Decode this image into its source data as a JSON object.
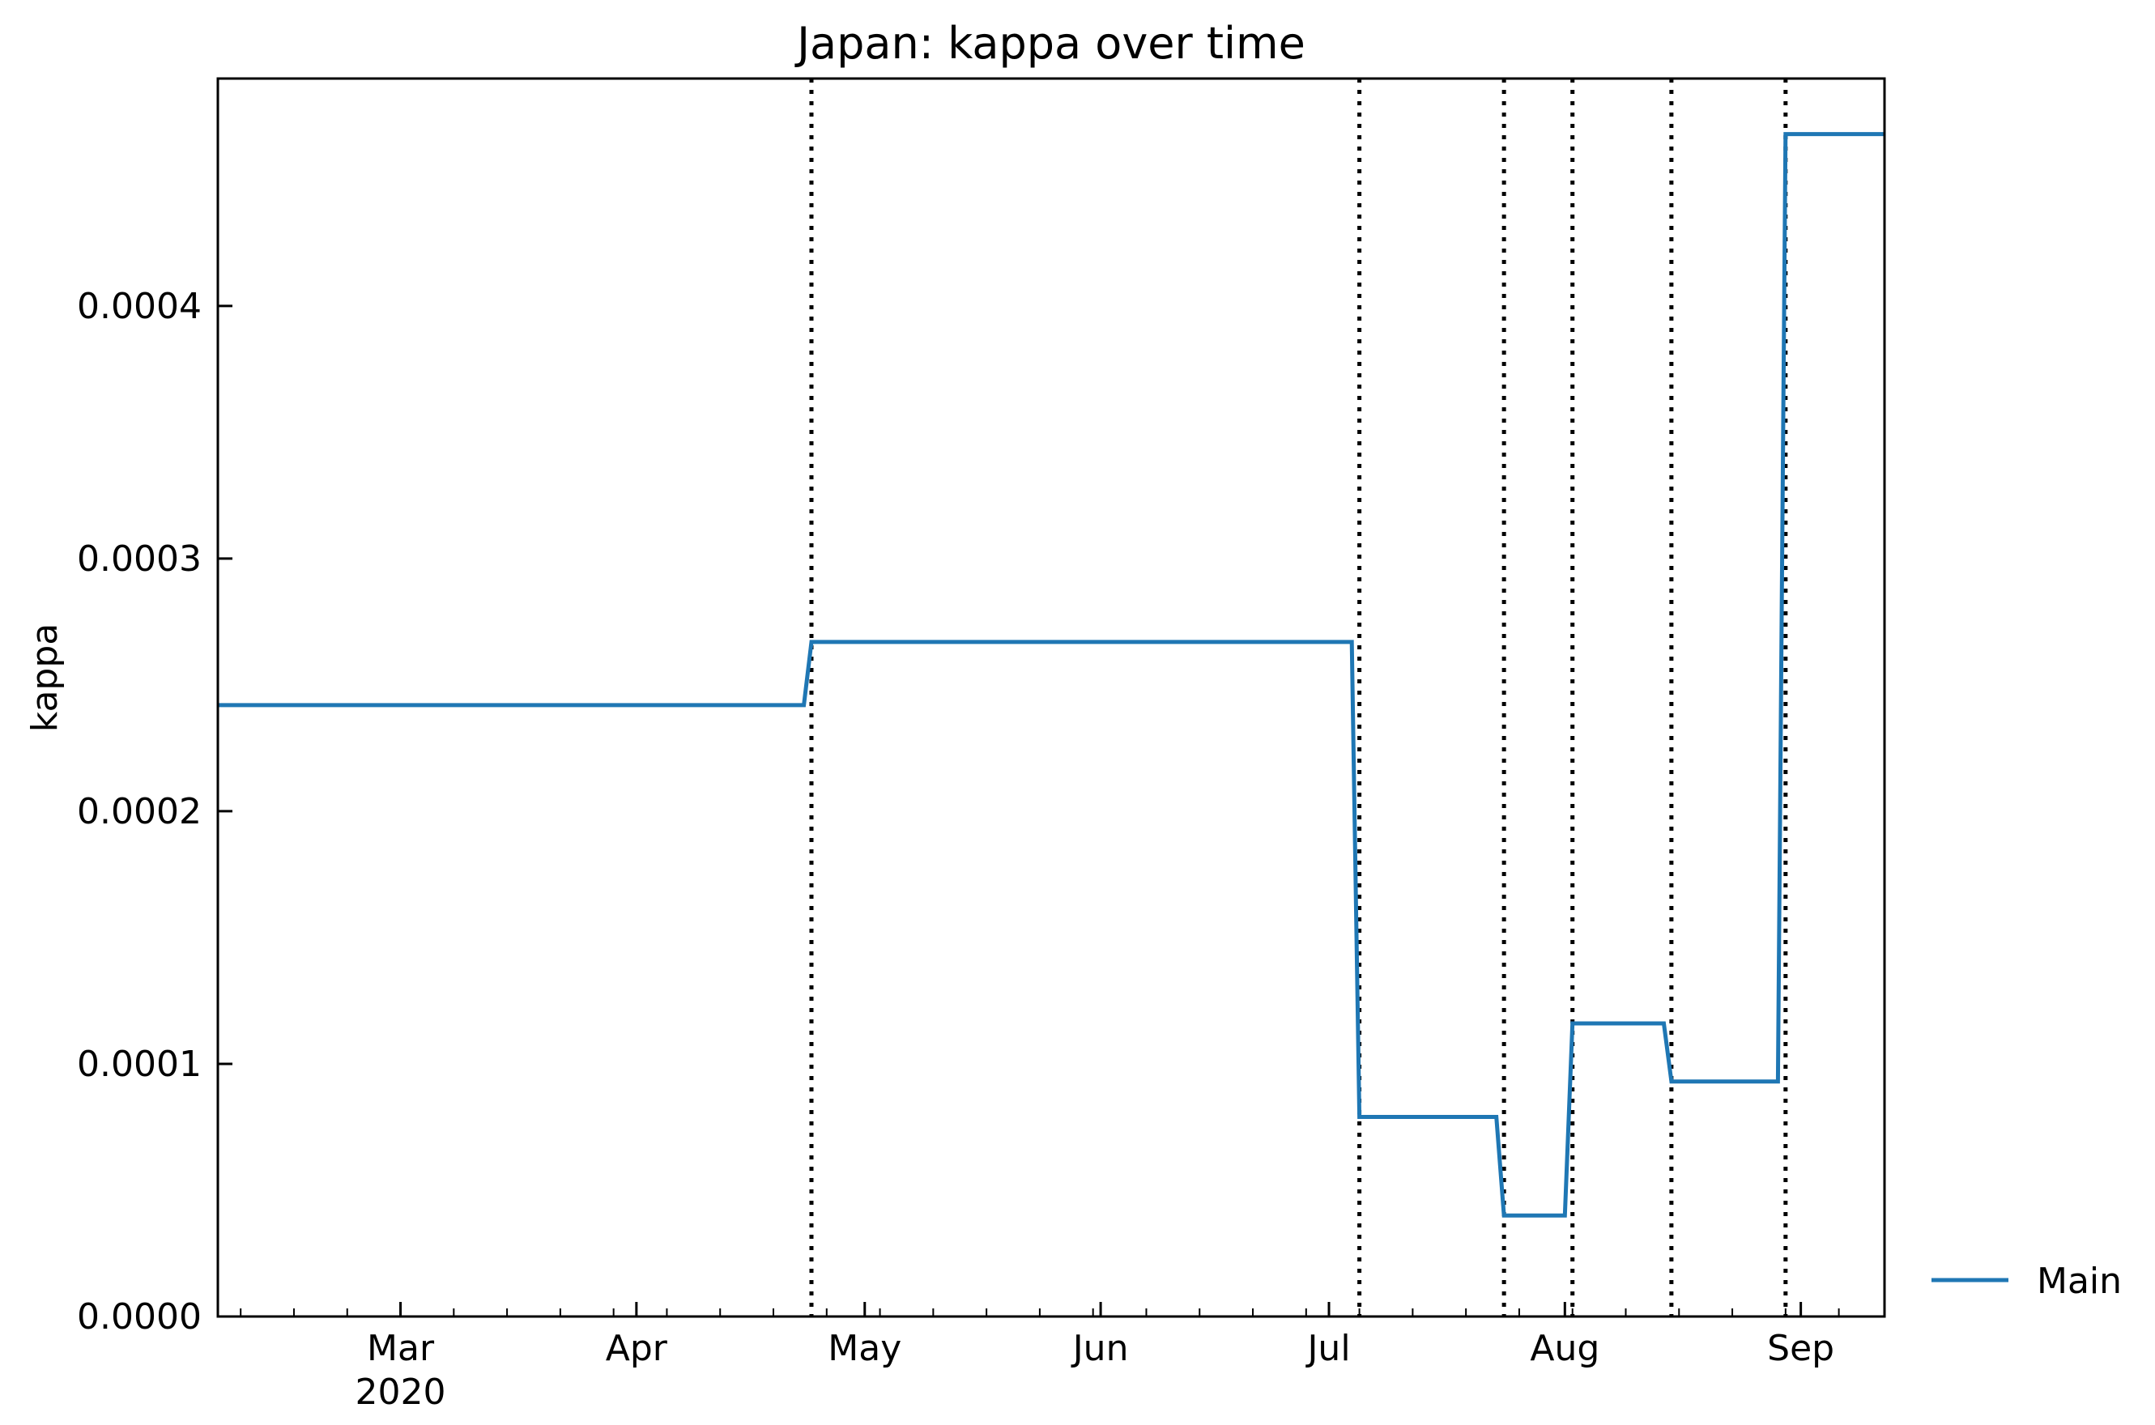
{
  "chart_data": {
    "type": "line",
    "title": "Japan: kappa over time",
    "xlabel": "",
    "ylabel": "kappa",
    "xlim": [
      "2020-02-06",
      "2020-09-12"
    ],
    "ylim": [
      0,
      0.00049
    ],
    "x_ticks": [
      {
        "date": "2020-03-01",
        "label": "Mar",
        "sublabel": "2020"
      },
      {
        "date": "2020-04-01",
        "label": "Apr",
        "sublabel": ""
      },
      {
        "date": "2020-05-01",
        "label": "May",
        "sublabel": ""
      },
      {
        "date": "2020-06-01",
        "label": "Jun",
        "sublabel": ""
      },
      {
        "date": "2020-07-01",
        "label": "Jul",
        "sublabel": ""
      },
      {
        "date": "2020-08-01",
        "label": "Aug",
        "sublabel": ""
      },
      {
        "date": "2020-09-01",
        "label": "Sep",
        "sublabel": ""
      }
    ],
    "y_ticks": [
      {
        "value": 0,
        "label": "0.0000"
      },
      {
        "value": 0.0001,
        "label": "0.0001"
      },
      {
        "value": 0.0002,
        "label": "0.0002"
      },
      {
        "value": 0.0003,
        "label": "0.0003"
      },
      {
        "value": 0.0004,
        "label": "0.0004"
      }
    ],
    "minor_x_ticks": [
      "2020-02-09",
      "2020-02-16",
      "2020-02-23",
      "2020-03-08",
      "2020-03-15",
      "2020-03-22",
      "2020-03-29",
      "2020-04-05",
      "2020-04-12",
      "2020-04-19",
      "2020-04-26",
      "2020-05-03",
      "2020-05-10",
      "2020-05-17",
      "2020-05-24",
      "2020-05-31",
      "2020-06-07",
      "2020-06-14",
      "2020-06-21",
      "2020-06-28",
      "2020-07-05",
      "2020-07-12",
      "2020-07-19",
      "2020-07-26",
      "2020-08-02",
      "2020-08-09",
      "2020-08-16",
      "2020-08-23",
      "2020-08-30",
      "2020-09-06"
    ],
    "change_points": [
      "2020-04-24",
      "2020-07-05",
      "2020-07-24",
      "2020-08-02",
      "2020-08-15",
      "2020-08-30"
    ],
    "series": [
      {
        "name": "Main",
        "color": "#1f77b4",
        "x": [
          "2020-02-06",
          "2020-04-23",
          "2020-04-24",
          "2020-07-04",
          "2020-07-05",
          "2020-07-23",
          "2020-07-24",
          "2020-08-01",
          "2020-08-02",
          "2020-08-14",
          "2020-08-15",
          "2020-08-29",
          "2020-08-30",
          "2020-09-12"
        ],
        "y": [
          0.000242,
          0.000242,
          0.000267,
          0.000267,
          7.9e-05,
          7.9e-05,
          4e-05,
          4e-05,
          0.000116,
          0.000116,
          9.3e-05,
          9.3e-05,
          0.000468,
          0.000468
        ]
      }
    ],
    "grid": false,
    "legend_position": "outside-right-bottom"
  }
}
